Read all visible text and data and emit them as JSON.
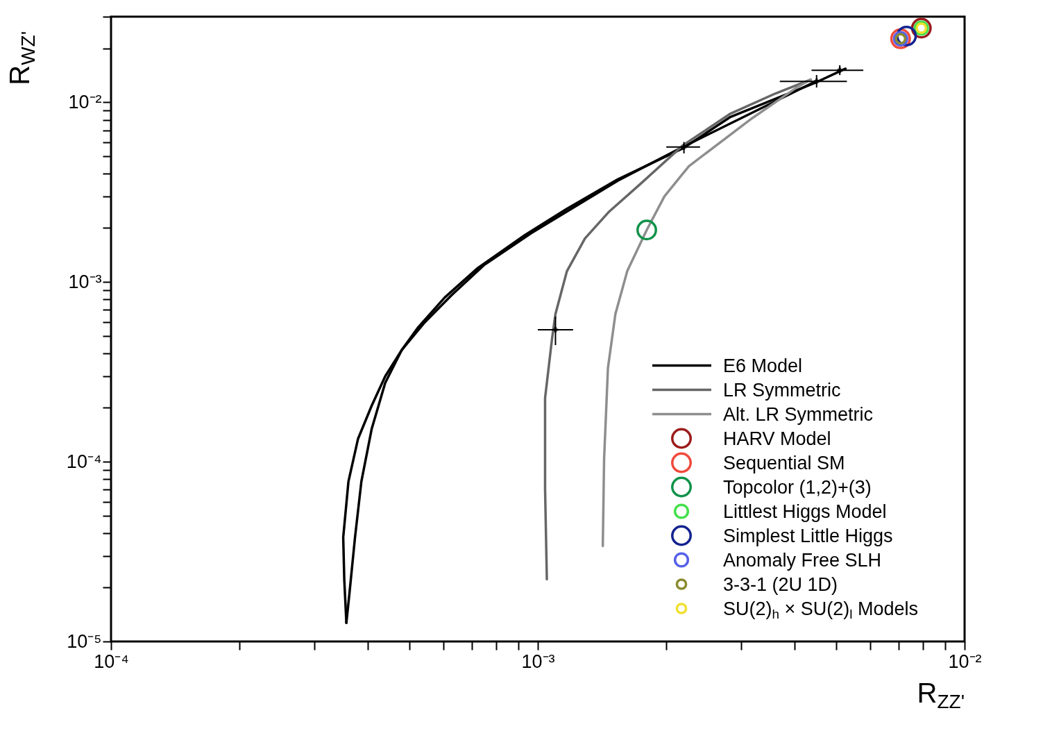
{
  "chart_data": {
    "type": "line",
    "xlabel": "R$_{ZZ'}$",
    "ylabel": "R$_{WZ'}$",
    "log": "xy",
    "grid": false,
    "legend": "bottom right",
    "xlim": [
      0.0001,
      0.01
    ],
    "ylim": [
      1e-05,
      0.03
    ],
    "xticks": [
      {
        "value": 0.0001,
        "label": "10⁻⁴"
      },
      {
        "value": 0.0002,
        "label": null
      },
      {
        "value": 0.0003,
        "label": null
      },
      {
        "value": 0.0004,
        "label": null
      },
      {
        "value": 0.0005,
        "label": null
      },
      {
        "value": 0.0006,
        "label": null
      },
      {
        "value": 0.0007,
        "label": null
      },
      {
        "value": 0.0008,
        "label": null
      },
      {
        "value": 0.0009,
        "label": null
      },
      {
        "value": 0.001,
        "label": "10⁻³"
      },
      {
        "value": 0.002,
        "label": null
      },
      {
        "value": 0.003,
        "label": null
      },
      {
        "value": 0.004,
        "label": null
      },
      {
        "value": 0.005,
        "label": null
      },
      {
        "value": 0.006,
        "label": null
      },
      {
        "value": 0.007,
        "label": null
      },
      {
        "value": 0.008,
        "label": null
      },
      {
        "value": 0.009,
        "label": null
      },
      {
        "value": 0.01,
        "label": "10⁻²"
      }
    ],
    "yticks": [
      {
        "value": 1e-05,
        "label": "10⁻⁵"
      },
      {
        "value": 2e-05,
        "label": null
      },
      {
        "value": 3e-05,
        "label": null
      },
      {
        "value": 4e-05,
        "label": null
      },
      {
        "value": 5e-05,
        "label": null
      },
      {
        "value": 6e-05,
        "label": null
      },
      {
        "value": 7e-05,
        "label": null
      },
      {
        "value": 8e-05,
        "label": null
      },
      {
        "value": 9e-05,
        "label": null
      },
      {
        "value": 0.0001,
        "label": "10⁻⁴"
      },
      {
        "value": 0.0002,
        "label": null
      },
      {
        "value": 0.0003,
        "label": null
      },
      {
        "value": 0.0004,
        "label": null
      },
      {
        "value": 0.0005,
        "label": null
      },
      {
        "value": 0.0006,
        "label": null
      },
      {
        "value": 0.0007,
        "label": null
      },
      {
        "value": 0.0008,
        "label": null
      },
      {
        "value": 0.0009,
        "label": null
      },
      {
        "value": 0.001,
        "label": "10⁻³"
      },
      {
        "value": 0.002,
        "label": null
      },
      {
        "value": 0.003,
        "label": null
      },
      {
        "value": 0.004,
        "label": null
      },
      {
        "value": 0.005,
        "label": null
      },
      {
        "value": 0.006,
        "label": null
      },
      {
        "value": 0.007,
        "label": null
      },
      {
        "value": 0.008,
        "label": null
      },
      {
        "value": 0.009,
        "label": null
      },
      {
        "value": 0.01,
        "label": "10⁻²"
      },
      {
        "value": 0.02,
        "label": null
      },
      {
        "value": 0.03,
        "label": null
      }
    ],
    "series": [
      {
        "name": "E6 Model",
        "color": "#000000",
        "x": [
          0.00526,
          0.00451,
          0.00283,
          0.0022,
          0.00154,
          0.00117,
          0.000931,
          0.000724,
          0.000605,
          0.000525,
          0.00048,
          0.000439,
          0.000408,
          0.000379,
          0.00036,
          0.00035,
          0.000352,
          0.000356
        ],
        "values": [
          0.0154,
          0.013,
          0.00831,
          0.00559,
          0.00373,
          0.00256,
          0.00182,
          0.0012,
          0.00082,
          0.000562,
          0.000419,
          0.000299,
          0.000205,
          0.000134,
          7.76e-05,
          3.8e-05,
          2.2e-05,
          1.27e-05
        ]
      },
      {
        "color": "#000000",
        "x": [
          0.000356,
          0.000362,
          0.000373,
          0.000386,
          0.000408,
          0.000439,
          0.00048,
          0.000543,
          0.000629,
          0.00075,
          0.000964,
          0.00154,
          0.0022,
          0.00451
        ],
        "values": [
          1.27e-05,
          1.86e-05,
          3.8e-05,
          7.76e-05,
          0.000152,
          0.000275,
          0.000419,
          0.000596,
          0.000849,
          0.00125,
          0.00187,
          0.00367,
          0.00569,
          0.0132
        ]
      },
      {
        "name": "LR Symmetric",
        "color": "#666666",
        "x": [
          0.00105,
          0.00104,
          0.00104,
          0.00108,
          0.0011,
          0.00117,
          0.00129,
          0.00147,
          0.00174,
          0.00219,
          0.00283,
          0.0036,
          0.00436
        ],
        "values": [
          2.22e-05,
          7.08e-05,
          0.000226,
          0.000486,
          0.000665,
          0.00115,
          0.00175,
          0.00247,
          0.00352,
          0.00578,
          0.00867,
          0.0112,
          0.0134
        ]
      },
      {
        "name": "Alt. LR Symmetric",
        "color": "#8e8e8e",
        "x": [
          0.00142,
          0.00143,
          0.00146,
          0.00152,
          0.00162,
          0.0018,
          0.00198,
          0.00226,
          0.00318,
          0.00404,
          0.00436
        ],
        "values": [
          3.4e-05,
          0.000104,
          0.000333,
          0.000665,
          0.00115,
          0.00195,
          0.003,
          0.00442,
          0.00817,
          0.0121,
          0.0134
        ]
      },
      {
        "name": "HARV Model",
        "type": "scatter",
        "marker": "circle",
        "color": "#9b1c1c",
        "x": [
          0.00792
        ],
        "values": [
          0.0259
        ]
      },
      {
        "name": "Sequential SM",
        "type": "scatter",
        "marker": "circle",
        "color": "#f04a3c",
        "x": [
          0.00708
        ],
        "values": [
          0.0226
        ]
      },
      {
        "name": "Topcolor (1,2)+(3)",
        "type": "scatter",
        "marker": "circle",
        "color": "#11924a",
        "x": [
          0.0018
        ],
        "values": [
          0.00195
        ]
      },
      {
        "name": "Littlest Higgs Model",
        "type": "scatter",
        "marker": "circle",
        "color": "#44e04a",
        "x": [
          0.00792
        ],
        "values": [
          0.0259
        ]
      },
      {
        "name": "Simplest Little Higgs",
        "type": "scatter",
        "marker": "circle",
        "color": "#14238f",
        "x": [
          0.00731
        ],
        "values": [
          0.0234
        ]
      },
      {
        "name": "Anomaly Free SLH",
        "type": "scatter",
        "marker": "circle",
        "color": "#5560e8",
        "x": [
          0.00708
        ],
        "values": [
          0.0226
        ]
      },
      {
        "name": "3-3-1 (2U 1D)",
        "type": "scatter",
        "marker": "circle",
        "color": "#8a8a30",
        "x": [
          0.00708
        ],
        "values": [
          0.0226
        ]
      },
      {
        "name": "SU(2)$_{h}$ × SU(2)$_{l}$ Models",
        "type": "scatter",
        "marker": "circle",
        "color": "#f0e030",
        "x": [
          0.00792
        ],
        "values": [
          0.0259
        ]
      },
      {
        "type": "scatter",
        "marker": "cross",
        "color": "#000000",
        "x": [
          0.0011,
          0.0022,
          0.0045,
          0.0051
        ],
        "values": [
          0.000543,
          0.00564,
          0.0131,
          0.0151
        ],
        "errors": [
          [
            0.000446,
            0.000643
          ],
          [
            0.0052,
            0.00602
          ],
          [
            0.0121,
            0.0142
          ],
          [
            0.0142,
            0.0161
          ]
        ],
        "xerrors": [
          [
            0.001,
            0.00121
          ],
          [
            0.002,
            0.0024
          ],
          [
            0.00369,
            0.0053
          ],
          [
            0.00438,
            0.00579
          ]
        ]
      }
    ]
  }
}
